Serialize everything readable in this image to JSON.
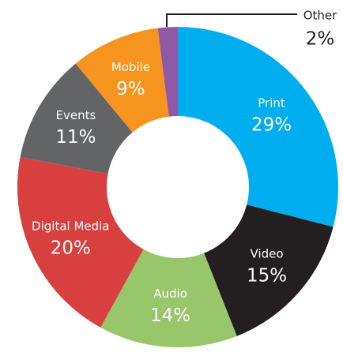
{
  "chart_data": {
    "type": "donut",
    "categories": [
      "Print",
      "Video",
      "Audio",
      "Digital Media",
      "Events",
      "Mobile",
      "Other"
    ],
    "values": [
      29,
      15,
      14,
      20,
      11,
      9,
      2
    ],
    "value_labels": [
      "29%",
      "15%",
      "14%",
      "20%",
      "11%",
      "9%",
      "2%"
    ],
    "colors": [
      "#00aeef",
      "#231f20",
      "#97c66b",
      "#d8403f",
      "#636466",
      "#f7941d",
      "#8f59a6"
    ]
  }
}
